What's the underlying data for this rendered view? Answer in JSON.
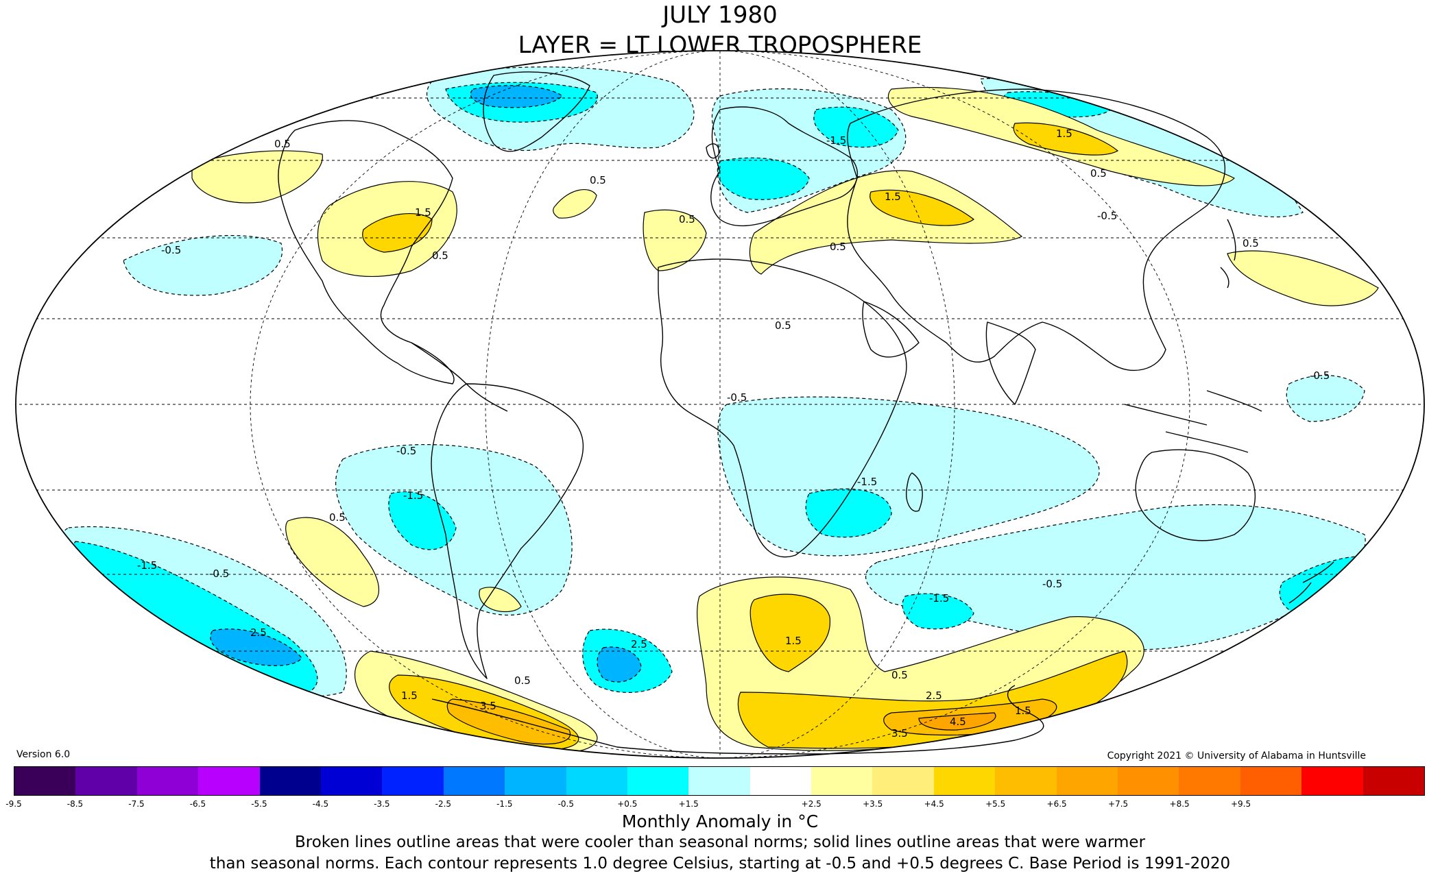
{
  "title": {
    "line1": "JULY 1980",
    "line2": "LAYER = LT LOWER TROPOSPHERE"
  },
  "version": "Version 6.0",
  "copyright": "Copyright 2021 © University of Alabama in Huntsville",
  "colorbar": {
    "colors": [
      "#3a0059",
      "#6000a8",
      "#8e00d6",
      "#b800ff",
      "#00008f",
      "#0000d4",
      "#0022ff",
      "#0078ff",
      "#00b4ff",
      "#00d8ff",
      "#00ffff",
      "#bfffff",
      "#ffffff",
      "#ffffa0",
      "#ffef7a",
      "#ffd700",
      "#ffbd00",
      "#ffa500",
      "#ff9000",
      "#ff7800",
      "#ff5f00",
      "#ff0000",
      "#c80000"
    ],
    "tick_labels": [
      "-9.5",
      "-8.5",
      "-7.5",
      "-6.5",
      "-5.5",
      "-4.5",
      "-3.5",
      "-2.5",
      "-1.5",
      "-0.5",
      "+0.5",
      "+1.5",
      "+2.5",
      "+3.5",
      "+4.5",
      "+5.5",
      "+6.5",
      "+7.5",
      "+8.5",
      "+9.5"
    ],
    "units_label": "Monthly Anomaly in °C"
  },
  "footnote": {
    "line1": "Broken lines outline areas that were cooler than seasonal norms; solid lines outline areas that were warmer",
    "line2": "than seasonal norms. Each contour represents 1.0 degree Celsius, starting at -0.5 and +0.5 degrees C. Base Period is 1991-2020"
  },
  "contour_labels": [
    {
      "text": "1.5"
    },
    {
      "text": "0.5"
    },
    {
      "text": "-1.5"
    },
    {
      "text": "-0.5"
    },
    {
      "text": "2.5"
    },
    {
      "text": "3.5"
    },
    {
      "text": "4.5"
    }
  ]
}
